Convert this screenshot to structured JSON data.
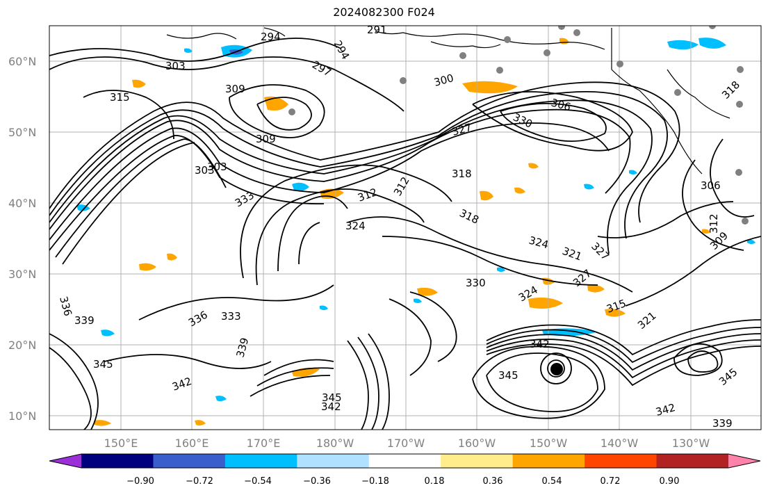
{
  "title": "2024082300 F024",
  "lat_ticks": [
    "60°N",
    "50°N",
    "40°N",
    "30°N",
    "20°N",
    "10°N"
  ],
  "lon_ticks": [
    "150°E",
    "160°E",
    "170°E",
    "180°W",
    "170°W",
    "160°W",
    "150°W",
    "140°W",
    "130°W"
  ],
  "contour_labels": [
    "294",
    "291",
    "294",
    "297",
    "300",
    "303",
    "303",
    "306",
    "309",
    "309",
    "312",
    "315",
    "318",
    "321",
    "324",
    "327",
    "330",
    "333",
    "336",
    "339",
    "342",
    "345",
    "312",
    "318",
    "324",
    "327",
    "330",
    "333",
    "336",
    "339",
    "342",
    "345",
    "303",
    "306",
    "309",
    "312",
    "315",
    "318",
    "321",
    "324",
    "327"
  ],
  "colorbar": {
    "labels": [
      "−0.90",
      "−0.72",
      "−0.54",
      "−0.36",
      "−0.18",
      "0.18",
      "0.36",
      "0.54",
      "0.72",
      "0.90"
    ],
    "colors": [
      "#9b30d9",
      "#00007f",
      "#3a5fcd",
      "#00bfff",
      "#b0e2ff",
      "#ffffff",
      "#ffec8b",
      "#ffa500",
      "#ff4500",
      "#b22222",
      "#ff82ab"
    ]
  },
  "colors": {
    "positive": "#ffa500",
    "negative": "#00bfff",
    "contour": "#000000",
    "grid": "#b0b0b0",
    "stations": "#808080"
  }
}
